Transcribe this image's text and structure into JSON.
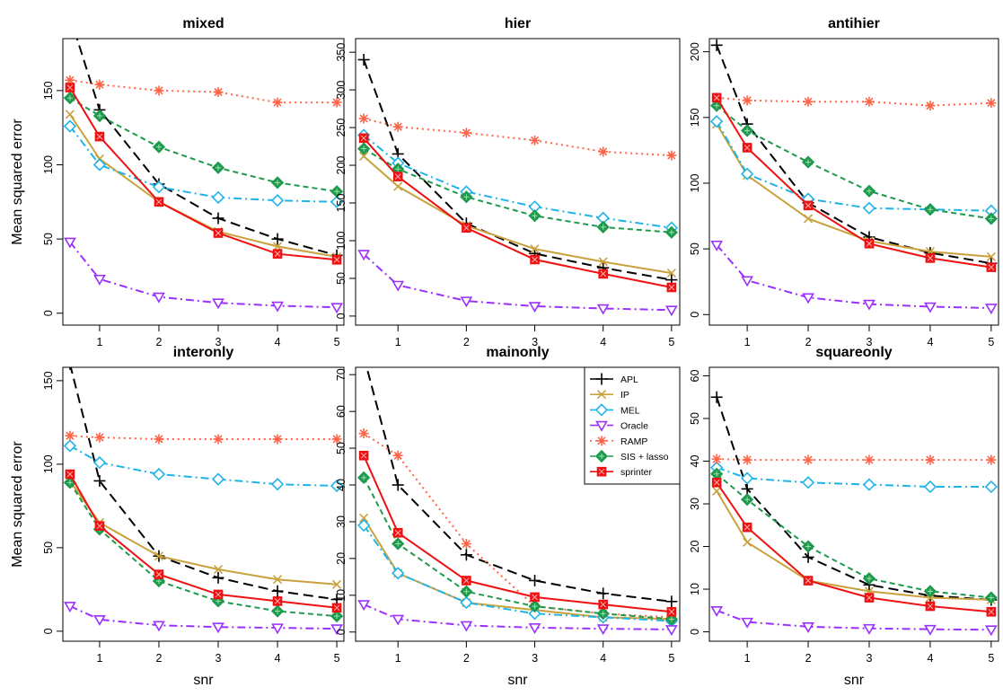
{
  "chart_data": [
    {
      "type": "line",
      "title": "mixed",
      "xlabel": "",
      "ylabel": "Mean squared error",
      "x": [
        0.5,
        1,
        2,
        3,
        4,
        5
      ],
      "xticks": [
        "1",
        "2",
        "3",
        "4",
        "5"
      ],
      "yticks": [
        "0",
        "50",
        "100",
        "150"
      ],
      "ylim": [
        -8,
        185
      ],
      "grid": false,
      "series": [
        {
          "name": "APL",
          "values": [
            200,
            137,
            87,
            64,
            50,
            39
          ]
        },
        {
          "name": "IP",
          "values": [
            134,
            104,
            75,
            55,
            45,
            38
          ]
        },
        {
          "name": "MEL",
          "values": [
            126,
            100,
            85,
            78,
            76,
            75
          ]
        },
        {
          "name": "Oracle",
          "values": [
            48,
            23,
            11,
            7,
            5,
            4
          ]
        },
        {
          "name": "RAMP",
          "values": [
            157,
            154,
            150,
            149,
            142,
            142
          ]
        },
        {
          "name": "SIS + lasso",
          "values": [
            145,
            133,
            112,
            98,
            88,
            82
          ]
        },
        {
          "name": "sprinter",
          "values": [
            152,
            119,
            75,
            54,
            40,
            36
          ]
        }
      ]
    },
    {
      "type": "line",
      "title": "hier",
      "xlabel": "",
      "ylabel": "",
      "x": [
        0.5,
        1,
        2,
        3,
        4,
        5
      ],
      "xticks": [
        "1",
        "2",
        "3",
        "4",
        "5"
      ],
      "yticks": [
        "0",
        "50",
        "100",
        "150",
        "200",
        "250",
        "300",
        "350"
      ],
      "ylim": [
        -12,
        368
      ],
      "grid": false,
      "series": [
        {
          "name": "APL",
          "values": [
            340,
            215,
            123,
            83,
            64,
            48
          ]
        },
        {
          "name": "IP",
          "values": [
            212,
            172,
            120,
            89,
            72,
            57
          ]
        },
        {
          "name": "MEL",
          "values": [
            240,
            203,
            165,
            145,
            130,
            117
          ]
        },
        {
          "name": "Oracle",
          "values": [
            82,
            41,
            20,
            13,
            10,
            8
          ]
        },
        {
          "name": "RAMP",
          "values": [
            262,
            251,
            243,
            233,
            218,
            213
          ]
        },
        {
          "name": "SIS + lasso",
          "values": [
            222,
            195,
            158,
            133,
            118,
            111
          ]
        },
        {
          "name": "sprinter",
          "values": [
            236,
            185,
            117,
            75,
            56,
            38
          ]
        }
      ]
    },
    {
      "type": "line",
      "title": "antihier",
      "xlabel": "",
      "ylabel": "",
      "x": [
        0.5,
        1,
        2,
        3,
        4,
        5
      ],
      "xticks": [
        "1",
        "2",
        "3",
        "4",
        "5"
      ],
      "yticks": [
        "0",
        "50",
        "100",
        "150",
        "200"
      ],
      "ylim": [
        -8,
        210
      ],
      "grid": false,
      "series": [
        {
          "name": "APL",
          "values": [
            205,
            145,
            85,
            59,
            47,
            39
          ]
        },
        {
          "name": "IP",
          "values": [
            145,
            106,
            73,
            56,
            48,
            44
          ]
        },
        {
          "name": "MEL",
          "values": [
            147,
            107,
            88,
            81,
            80,
            79
          ]
        },
        {
          "name": "Oracle",
          "values": [
            53,
            26,
            13,
            8,
            6,
            5
          ]
        },
        {
          "name": "RAMP",
          "values": [
            165,
            163,
            162,
            162,
            159,
            161
          ]
        },
        {
          "name": "SIS + lasso",
          "values": [
            159,
            140,
            116,
            94,
            80,
            73
          ]
        },
        {
          "name": "sprinter",
          "values": [
            165,
            127,
            83,
            54,
            43,
            36
          ]
        }
      ]
    },
    {
      "type": "line",
      "title": "interonly",
      "xlabel": "snr",
      "ylabel": "Mean squared error",
      "x": [
        0.5,
        1,
        2,
        3,
        4,
        5
      ],
      "xticks": [
        "1",
        "2",
        "3",
        "4",
        "5"
      ],
      "yticks": [
        "0",
        "50",
        "100",
        "150"
      ],
      "ylim": [
        -6,
        158
      ],
      "grid": false,
      "series": [
        {
          "name": "APL",
          "values": [
            160,
            90,
            45,
            32,
            24,
            19
          ]
        },
        {
          "name": "IP",
          "values": [
            90,
            65,
            45,
            37,
            31,
            28
          ]
        },
        {
          "name": "MEL",
          "values": [
            111,
            101,
            94,
            91,
            88,
            87
          ]
        },
        {
          "name": "Oracle",
          "values": [
            15,
            7,
            3.5,
            2.5,
            2,
            1.5
          ]
        },
        {
          "name": "RAMP",
          "values": [
            117,
            116,
            115,
            115,
            115,
            115
          ]
        },
        {
          "name": "SIS + lasso",
          "values": [
            89,
            61,
            30,
            18,
            12,
            9
          ]
        },
        {
          "name": "sprinter",
          "values": [
            94,
            63,
            34,
            22,
            18,
            14
          ]
        }
      ]
    },
    {
      "type": "line",
      "title": "mainonly",
      "xlabel": "snr",
      "ylabel": "",
      "x": [
        0.5,
        1,
        2,
        3,
        4,
        5
      ],
      "xticks": [
        "1",
        "2",
        "3",
        "4",
        "5"
      ],
      "yticks": [
        "0",
        "10",
        "20",
        "30",
        "40",
        "50",
        "60",
        "70"
      ],
      "ylim": [
        -2.5,
        72
      ],
      "grid": false,
      "series": [
        {
          "name": "APL",
          "values": [
            75,
            40,
            21,
            14,
            10.5,
            8.3
          ]
        },
        {
          "name": "IP",
          "values": [
            31,
            16,
            8,
            6,
            4,
            3.5
          ]
        },
        {
          "name": "MEL",
          "values": [
            29,
            16,
            8,
            5,
            4,
            3
          ]
        },
        {
          "name": "Oracle",
          "values": [
            7.5,
            3.5,
            1.8,
            1.2,
            0.9,
            0.7
          ]
        },
        {
          "name": "RAMP",
          "values": [
            54,
            48,
            24,
            7,
            5,
            4
          ]
        },
        {
          "name": "SIS + lasso",
          "values": [
            42,
            24,
            11,
            7,
            5,
            3.5
          ]
        },
        {
          "name": "sprinter",
          "values": [
            48,
            27,
            14,
            9.5,
            7.5,
            5.5
          ]
        }
      ],
      "legend": "top-right"
    },
    {
      "type": "line",
      "title": "squareonly",
      "xlabel": "snr",
      "ylabel": "",
      "x": [
        0.5,
        1,
        2,
        3,
        4,
        5
      ],
      "xticks": [
        "1",
        "2",
        "3",
        "4",
        "5"
      ],
      "yticks": [
        "0",
        "10",
        "20",
        "30",
        "40",
        "50",
        "60"
      ],
      "ylim": [
        -2.2,
        62
      ],
      "grid": false,
      "series": [
        {
          "name": "APL",
          "values": [
            55,
            33.5,
            17.5,
            11,
            8.5,
            7.5
          ]
        },
        {
          "name": "IP",
          "values": [
            33,
            21,
            12,
            9.5,
            8,
            7.5
          ]
        },
        {
          "name": "MEL",
          "values": [
            38.5,
            36,
            35,
            34.5,
            34,
            34
          ]
        },
        {
          "name": "Oracle",
          "values": [
            5,
            2.3,
            1.2,
            0.8,
            0.6,
            0.5
          ]
        },
        {
          "name": "RAMP",
          "values": [
            40.5,
            40.3,
            40.3,
            40.3,
            40.3,
            40.3
          ]
        },
        {
          "name": "SIS + lasso",
          "values": [
            37,
            31,
            20,
            12.5,
            9.5,
            8
          ]
        },
        {
          "name": "sprinter",
          "values": [
            35,
            24.5,
            12,
            8,
            6,
            4.7
          ]
        }
      ]
    }
  ],
  "styles": {
    "APL": {
      "color": "#000000",
      "dash": "11,6",
      "marker": "plus"
    },
    "IP": {
      "color": "#C9A23C",
      "dash": "",
      "marker": "x"
    },
    "MEL": {
      "color": "#1EB4E8",
      "dash": "9,4,2,4",
      "marker": "diamond"
    },
    "Oracle": {
      "color": "#9B30FF",
      "dash": "9,4,2,4",
      "marker": "tri-down"
    },
    "RAMP": {
      "color": "#FF6347",
      "dash": "2,4",
      "marker": "asterisk"
    },
    "SIS + lasso": {
      "color": "#1E9A4C",
      "dash": "6,4",
      "marker": "diamond-plus"
    },
    "sprinter": {
      "color": "#EE1111",
      "dash": "",
      "marker": "square-x"
    }
  },
  "legend": {
    "entries": [
      "APL",
      "IP",
      "MEL",
      "Oracle",
      "RAMP",
      "SIS + lasso",
      "sprinter"
    ]
  }
}
